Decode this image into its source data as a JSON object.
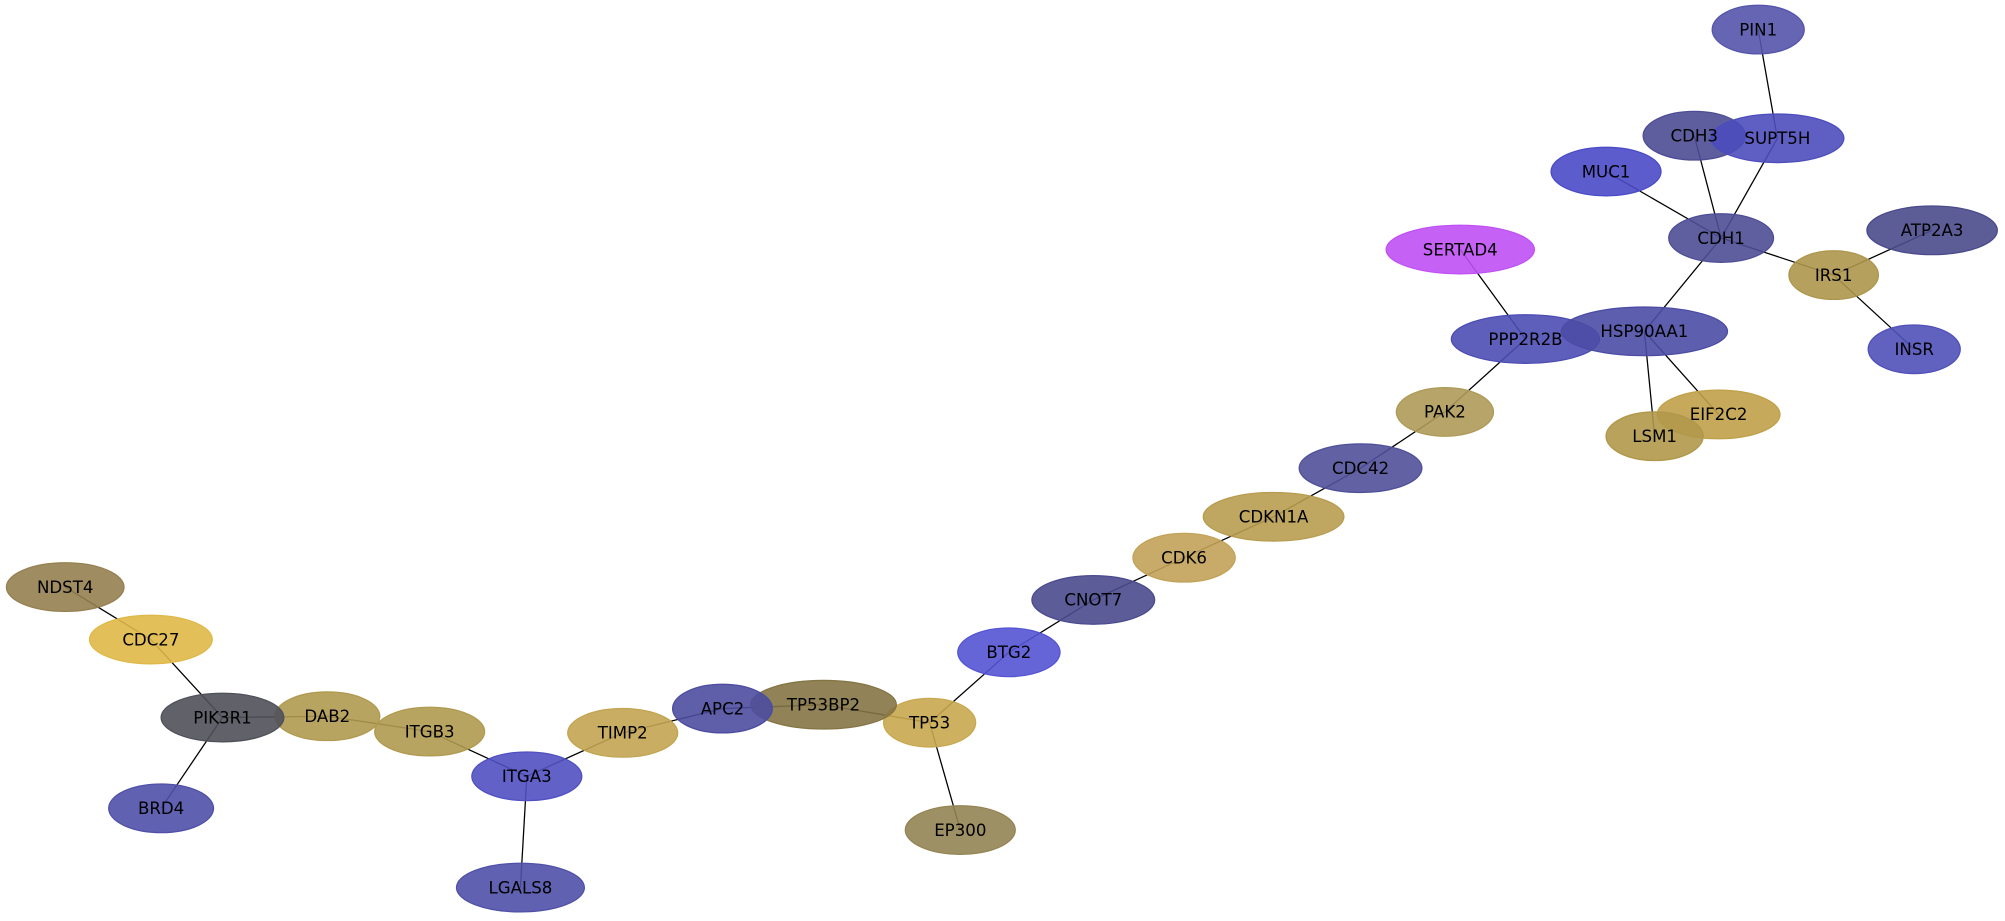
{
  "nodes": [
    {
      "label": "PIN1"
    },
    {
      "label": "CDH3"
    },
    {
      "label": "SUPT5H"
    },
    {
      "label": "MUC1"
    },
    {
      "label": "CDH1"
    },
    {
      "label": "ATP2A3"
    },
    {
      "label": "IRS1"
    },
    {
      "label": "SERTAD4"
    },
    {
      "label": "PPP2R2B"
    },
    {
      "label": "HSP90AA1"
    },
    {
      "label": "INSR"
    },
    {
      "label": "EIF2C2"
    },
    {
      "label": "LSM1"
    },
    {
      "label": "PAK2"
    },
    {
      "label": "CDC42"
    },
    {
      "label": "CDKN1A"
    },
    {
      "label": "CDK6"
    },
    {
      "label": "CNOT7"
    },
    {
      "label": "BTG2"
    },
    {
      "label": "TP53"
    },
    {
      "label": "EP300"
    },
    {
      "label": "TP53BP2"
    },
    {
      "label": "APC2"
    },
    {
      "label": "TIMP2"
    },
    {
      "label": "ITGA3"
    },
    {
      "label": "LGALS8"
    },
    {
      "label": "ITGB3"
    },
    {
      "label": "DAB2"
    },
    {
      "label": "PIK3R1"
    },
    {
      "label": "BRD4"
    },
    {
      "label": "CDC27"
    },
    {
      "label": "NDST4"
    }
  ]
}
